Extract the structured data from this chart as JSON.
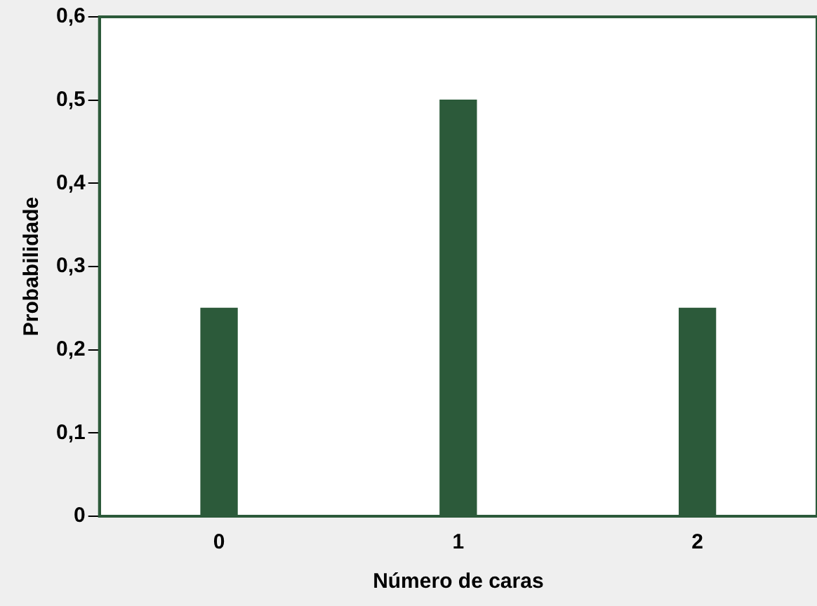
{
  "chart_data": {
    "type": "bar",
    "xlabel": "Número de caras",
    "ylabel": "Probabilidade",
    "categories": [
      "0",
      "1",
      "2"
    ],
    "values": [
      0.25,
      0.5,
      0.25
    ],
    "color": "#2c5a3a",
    "ylim": [
      0,
      0.6
    ],
    "yticks": [
      0,
      {
        "value": 0.1,
        "label": "0,1"
      },
      {
        "value": 0.2,
        "label": "0,2"
      },
      {
        "value": 0.3,
        "label": "0,3"
      },
      {
        "value": 0.4,
        "label": "0,4"
      },
      {
        "value": 0.5,
        "label": "0,5"
      },
      {
        "value": 0.6,
        "label": "0,6"
      }
    ],
    "grid": false,
    "legend": false
  }
}
